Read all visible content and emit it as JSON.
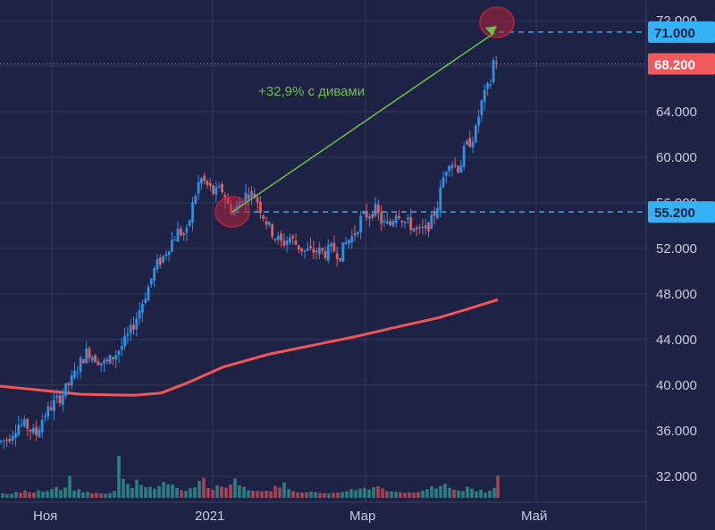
{
  "chart_data": {
    "type": "candlestick",
    "colors": {
      "background": "#1e2245",
      "grid": "#33395f",
      "up": "#2f8fe0",
      "down": "#e05d62",
      "vol_up": "#2b8a86",
      "vol_down": "#b5485a",
      "ma": "#f05656",
      "arrow": "#6fbf4a",
      "dashed": "#3fa6f0",
      "badge_blue": "#35b1f5",
      "badge_red": "#f05a5e",
      "circle": "#b3243e"
    },
    "y_axis": {
      "ticks": [
        32,
        36,
        40,
        44,
        48,
        52,
        56,
        60,
        64,
        68,
        72
      ],
      "tick_labels": [
        "32.000",
        "36.000",
        "40.000",
        "44.000",
        "48.000",
        "52.000",
        "56.000",
        "60.000",
        "64.000",
        "68.000",
        "72.000"
      ],
      "range": [
        31.2,
        72.4
      ]
    },
    "x_axis": {
      "tick_labels": [
        "Ноя",
        "2021",
        "Мар",
        "Май"
      ]
    },
    "price_labels": {
      "top": "71.000",
      "last": "68.200",
      "base": "55.200"
    },
    "annotation": {
      "text": "+32,9% с дивами",
      "from_price": 55.2,
      "to_price": 71.0
    },
    "ma_curve": [
      [
        0,
        39.9
      ],
      [
        40,
        39.6
      ],
      [
        90,
        39.2
      ],
      [
        150,
        39.1
      ],
      [
        180,
        39.3
      ],
      [
        210,
        40.2
      ],
      [
        250,
        41.6
      ],
      [
        300,
        42.7
      ],
      [
        350,
        43.5
      ],
      [
        400,
        44.3
      ],
      [
        450,
        45.2
      ],
      [
        490,
        45.9
      ],
      [
        520,
        46.6
      ],
      [
        557,
        47.5
      ]
    ],
    "price_path": [
      [
        0,
        35.0
      ],
      [
        10,
        35.4
      ],
      [
        20,
        36.6
      ],
      [
        30,
        36.4
      ],
      [
        40,
        35.6
      ],
      [
        48,
        37.2
      ],
      [
        58,
        38.2
      ],
      [
        68,
        39.0
      ],
      [
        80,
        40.4
      ],
      [
        90,
        42.0
      ],
      [
        98,
        43.0
      ],
      [
        108,
        42.3
      ],
      [
        118,
        41.8
      ],
      [
        128,
        42.6
      ],
      [
        138,
        43.6
      ],
      [
        148,
        45.0
      ],
      [
        158,
        47.0
      ],
      [
        166,
        48.6
      ],
      [
        174,
        50.4
      ],
      [
        182,
        51.2
      ],
      [
        190,
        52.4
      ],
      [
        200,
        53.6
      ],
      [
        208,
        53.0
      ],
      [
        216,
        56.0
      ],
      [
        224,
        58.2
      ],
      [
        232,
        57.5
      ],
      [
        240,
        56.8
      ],
      [
        248,
        57.2
      ],
      [
        256,
        55.6
      ],
      [
        262,
        55.2
      ],
      [
        270,
        56.4
      ],
      [
        278,
        56.9
      ],
      [
        286,
        56.6
      ],
      [
        294,
        55.0
      ],
      [
        300,
        54.0
      ],
      [
        308,
        53.0
      ],
      [
        316,
        52.4
      ],
      [
        324,
        53.0
      ],
      [
        332,
        52.3
      ],
      [
        340,
        51.8
      ],
      [
        348,
        51.7
      ],
      [
        356,
        51.8
      ],
      [
        364,
        51.6
      ],
      [
        372,
        52.0
      ],
      [
        380,
        51.4
      ],
      [
        388,
        52.6
      ],
      [
        396,
        53.2
      ],
      [
        404,
        54.6
      ],
      [
        412,
        55.0
      ],
      [
        420,
        55.4
      ],
      [
        428,
        54.2
      ],
      [
        436,
        54.0
      ],
      [
        444,
        55.4
      ],
      [
        452,
        54.4
      ],
      [
        460,
        54.0
      ],
      [
        468,
        53.4
      ],
      [
        476,
        53.6
      ],
      [
        484,
        54.6
      ],
      [
        490,
        56.0
      ],
      [
        496,
        58.2
      ],
      [
        502,
        59.8
      ],
      [
        508,
        59.4
      ],
      [
        514,
        59.0
      ],
      [
        520,
        60.8
      ],
      [
        526,
        61.4
      ],
      [
        532,
        62.2
      ],
      [
        538,
        64.6
      ],
      [
        544,
        65.8
      ],
      [
        549,
        66.6
      ],
      [
        553,
        69.0
      ],
      [
        557,
        68.2
      ]
    ],
    "volume": [
      [
        3,
        0.42
      ],
      [
        8,
        0.35
      ],
      [
        13,
        0.38
      ],
      [
        18,
        0.55
      ],
      [
        23,
        0.45
      ],
      [
        28,
        0.66
      ],
      [
        33,
        0.52
      ],
      [
        38,
        0.48
      ],
      [
        43,
        0.7
      ],
      [
        48,
        0.57
      ],
      [
        53,
        0.62
      ],
      [
        58,
        0.79
      ],
      [
        63,
        1.0
      ],
      [
        68,
        0.72
      ],
      [
        73,
        0.96
      ],
      [
        78,
        2.02
      ],
      [
        83,
        0.65
      ],
      [
        88,
        0.78
      ],
      [
        93,
        0.5
      ],
      [
        98,
        0.55
      ],
      [
        103,
        0.42
      ],
      [
        108,
        0.46
      ],
      [
        113,
        0.4
      ],
      [
        118,
        0.38
      ],
      [
        123,
        0.44
      ],
      [
        128,
        0.62
      ],
      [
        133,
        3.86
      ],
      [
        138,
        1.74
      ],
      [
        143,
        1.28
      ],
      [
        148,
        0.9
      ],
      [
        153,
        1.66
      ],
      [
        158,
        1.18
      ],
      [
        163,
        0.98
      ],
      [
        168,
        1.02
      ],
      [
        173,
        0.84
      ],
      [
        178,
        1.08
      ],
      [
        183,
        1.46
      ],
      [
        188,
        1.23
      ],
      [
        193,
        1.22
      ],
      [
        198,
        0.9
      ],
      [
        203,
        0.7
      ],
      [
        208,
        0.66
      ],
      [
        213,
        0.88
      ],
      [
        218,
        0.96
      ],
      [
        223,
        1.56
      ],
      [
        228,
        1.84
      ],
      [
        233,
        0.9
      ],
      [
        238,
        0.74
      ],
      [
        243,
        1.14
      ],
      [
        248,
        1.04
      ],
      [
        253,
        0.94
      ],
      [
        258,
        1.22
      ],
      [
        263,
        1.76
      ],
      [
        268,
        1.14
      ],
      [
        273,
        1.0
      ],
      [
        278,
        0.7
      ],
      [
        283,
        0.66
      ],
      [
        288,
        0.62
      ],
      [
        293,
        0.6
      ],
      [
        298,
        0.66
      ],
      [
        303,
        0.6
      ],
      [
        308,
        1.08
      ],
      [
        313,
        0.94
      ],
      [
        318,
        1.42
      ],
      [
        323,
        0.8
      ],
      [
        328,
        0.6
      ],
      [
        333,
        0.5
      ],
      [
        338,
        0.48
      ],
      [
        343,
        0.52
      ],
      [
        348,
        0.56
      ],
      [
        353,
        0.52
      ],
      [
        358,
        0.46
      ],
      [
        363,
        0.42
      ],
      [
        368,
        0.4
      ],
      [
        373,
        0.46
      ],
      [
        378,
        0.48
      ],
      [
        383,
        0.52
      ],
      [
        388,
        0.6
      ],
      [
        393,
        0.8
      ],
      [
        398,
        0.7
      ],
      [
        403,
        0.84
      ],
      [
        408,
        0.92
      ],
      [
        413,
        0.76
      ],
      [
        418,
        0.98
      ],
      [
        423,
        1.06
      ],
      [
        428,
        0.86
      ],
      [
        433,
        0.62
      ],
      [
        438,
        0.6
      ],
      [
        443,
        0.56
      ],
      [
        448,
        0.52
      ],
      [
        453,
        0.46
      ],
      [
        458,
        0.5
      ],
      [
        463,
        0.48
      ],
      [
        468,
        0.54
      ],
      [
        473,
        0.68
      ],
      [
        478,
        0.8
      ],
      [
        483,
        1.06
      ],
      [
        488,
        0.86
      ],
      [
        493,
        1.08
      ],
      [
        498,
        1.28
      ],
      [
        503,
        0.92
      ],
      [
        508,
        0.76
      ],
      [
        513,
        0.66
      ],
      [
        518,
        0.62
      ],
      [
        523,
        1.02
      ],
      [
        528,
        0.84
      ],
      [
        533,
        0.6
      ],
      [
        538,
        0.76
      ],
      [
        543,
        0.48
      ],
      [
        548,
        0.66
      ],
      [
        553,
        0.92
      ],
      [
        557,
        2.02
      ]
    ]
  }
}
